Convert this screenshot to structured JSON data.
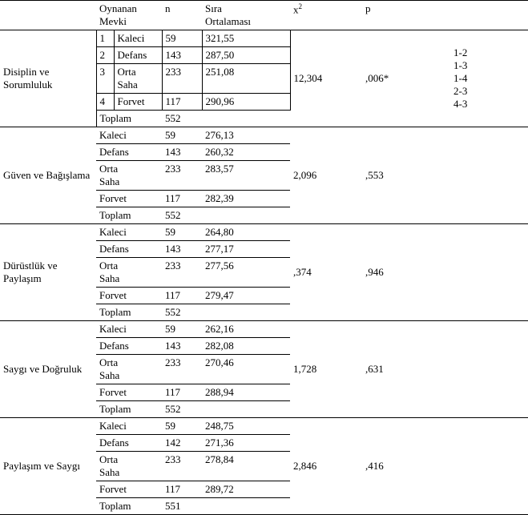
{
  "header": {
    "mevki": "Oynanan\nMevki",
    "n": "n",
    "sira": "Sıra\nOrtalaması",
    "x2_html": "x<sup>2</sup>",
    "p": "p"
  },
  "positions": {
    "kaleci": "Kaleci",
    "defans": "Defans",
    "orta": "Orta\nSaha",
    "forvet": "Forvet",
    "toplam": "Toplam"
  },
  "idx": {
    "i1": "1",
    "i2": "2",
    "i3": "3",
    "i4": "4"
  },
  "sections": [
    {
      "title": "Disiplin ve\nSorumluluk",
      "rows": [
        {
          "n": "59",
          "mean": "321,55"
        },
        {
          "n": "143",
          "mean": "287,50"
        },
        {
          "n": "233",
          "mean": "251,08"
        },
        {
          "n": "117",
          "mean": "290,96"
        },
        {
          "n": "552",
          "mean": ""
        }
      ],
      "x2": "12,304",
      "p": ",006*",
      "pairs": "1-2\n1-3\n1-4\n2-3\n4-3",
      "numbered": true
    },
    {
      "title": "Güven ve Bağışlama",
      "rows": [
        {
          "n": "59",
          "mean": "276,13"
        },
        {
          "n": "143",
          "mean": "260,32"
        },
        {
          "n": "233",
          "mean": "283,57"
        },
        {
          "n": "117",
          "mean": "282,39"
        },
        {
          "n": "552",
          "mean": ""
        }
      ],
      "x2": "2,096",
      "p": ",553",
      "pairs": "",
      "numbered": false
    },
    {
      "title": "Dürüstlük ve Paylaşım",
      "rows": [
        {
          "n": "59",
          "mean": "264,80"
        },
        {
          "n": "143",
          "mean": "277,17"
        },
        {
          "n": "233",
          "mean": "277,56"
        },
        {
          "n": "117",
          "mean": "279,47"
        },
        {
          "n": "552",
          "mean": ""
        }
      ],
      "x2": ",374",
      "p": ",946",
      "pairs": "",
      "numbered": false
    },
    {
      "title": "Saygı ve Doğruluk",
      "rows": [
        {
          "n": "59",
          "mean": "262,16"
        },
        {
          "n": "143",
          "mean": "282,08"
        },
        {
          "n": "233",
          "mean": "270,46"
        },
        {
          "n": "117",
          "mean": "288,94"
        },
        {
          "n": "552",
          "mean": ""
        }
      ],
      "x2": "1,728",
      "p": ",631",
      "pairs": "",
      "numbered": false
    },
    {
      "title": "Paylaşım ve Saygı",
      "rows": [
        {
          "n": "59",
          "mean": "248,75"
        },
        {
          "n": "142",
          "mean": "271,36"
        },
        {
          "n": "233",
          "mean": "278,84"
        },
        {
          "n": "117",
          "mean": "289,72"
        },
        {
          "n": "551",
          "mean": ""
        }
      ],
      "x2": "2,846",
      "p": ",416",
      "pairs": "",
      "numbered": false
    }
  ]
}
